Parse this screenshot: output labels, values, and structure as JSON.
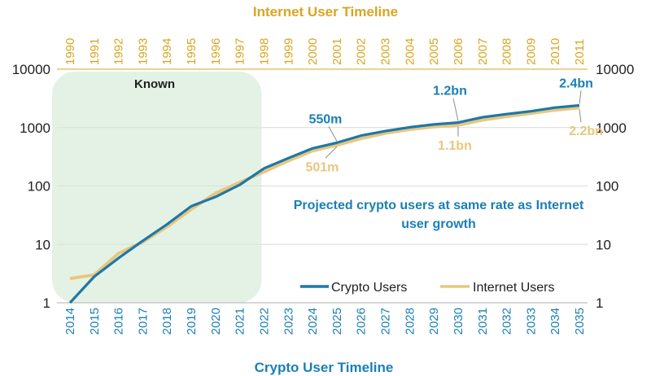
{
  "chart_data": {
    "type": "line",
    "title_top": "Internet User Timeline",
    "title_bottom": "Crypto User Timeline",
    "y_scale": "log",
    "ylim": [
      1,
      10000
    ],
    "y_ticks": [
      "1",
      "10",
      "100",
      "1000",
      "10000"
    ],
    "x_top": [
      "1990",
      "1991",
      "1992",
      "1993",
      "1994",
      "1995",
      "1996",
      "1997",
      "1998",
      "1999",
      "2000",
      "2001",
      "2002",
      "2003",
      "2004",
      "2005",
      "2006",
      "2007",
      "2008",
      "2009",
      "2010",
      "2011"
    ],
    "x_bottom": [
      "2014",
      "2015",
      "2016",
      "2017",
      "2018",
      "2019",
      "2020",
      "2021",
      "2022",
      "2023",
      "2024",
      "2025",
      "2026",
      "2027",
      "2028",
      "2029",
      "2030",
      "2031",
      "2032",
      "2033",
      "2034",
      "2035"
    ],
    "series": [
      {
        "name": "Crypto Users",
        "color": "#1f77a8",
        "values": [
          1,
          2.8,
          5.8,
          11.5,
          22,
          45,
          65,
          105,
          200,
          300,
          440,
          550,
          730,
          870,
          1010,
          1130,
          1220,
          1500,
          1700,
          1900,
          2200,
          2400
        ]
      },
      {
        "name": "Internet Users",
        "color": "#e8c77e",
        "values": [
          2.6,
          3.0,
          7.0,
          11.0,
          20,
          40,
          75,
          115,
          175,
          270,
          400,
          501,
          650,
          800,
          930,
          1030,
          1100,
          1350,
          1550,
          1750,
          2000,
          2200
        ]
      }
    ],
    "shaded_region": {
      "label": "Known",
      "from": "2014",
      "to": "2022"
    },
    "annotations": {
      "crypto": [
        "550m",
        "1.2bn",
        "2.4bn"
      ],
      "internet": [
        "501m",
        "1.1bn",
        "2.2bn"
      ]
    },
    "projection_note_line1": "Projected crypto users at same rate as Internet",
    "projection_note_line2": "user growth",
    "legend": [
      "Crypto Users",
      "Internet Users"
    ],
    "colors": {
      "crypto": "#1f77a8",
      "internet": "#e8c77e",
      "top_axis_text": "#d9a521",
      "bottom_axis_text": "#1a7fb5",
      "shade": "#e3f2e5",
      "grid": "#dcdcdc"
    }
  }
}
